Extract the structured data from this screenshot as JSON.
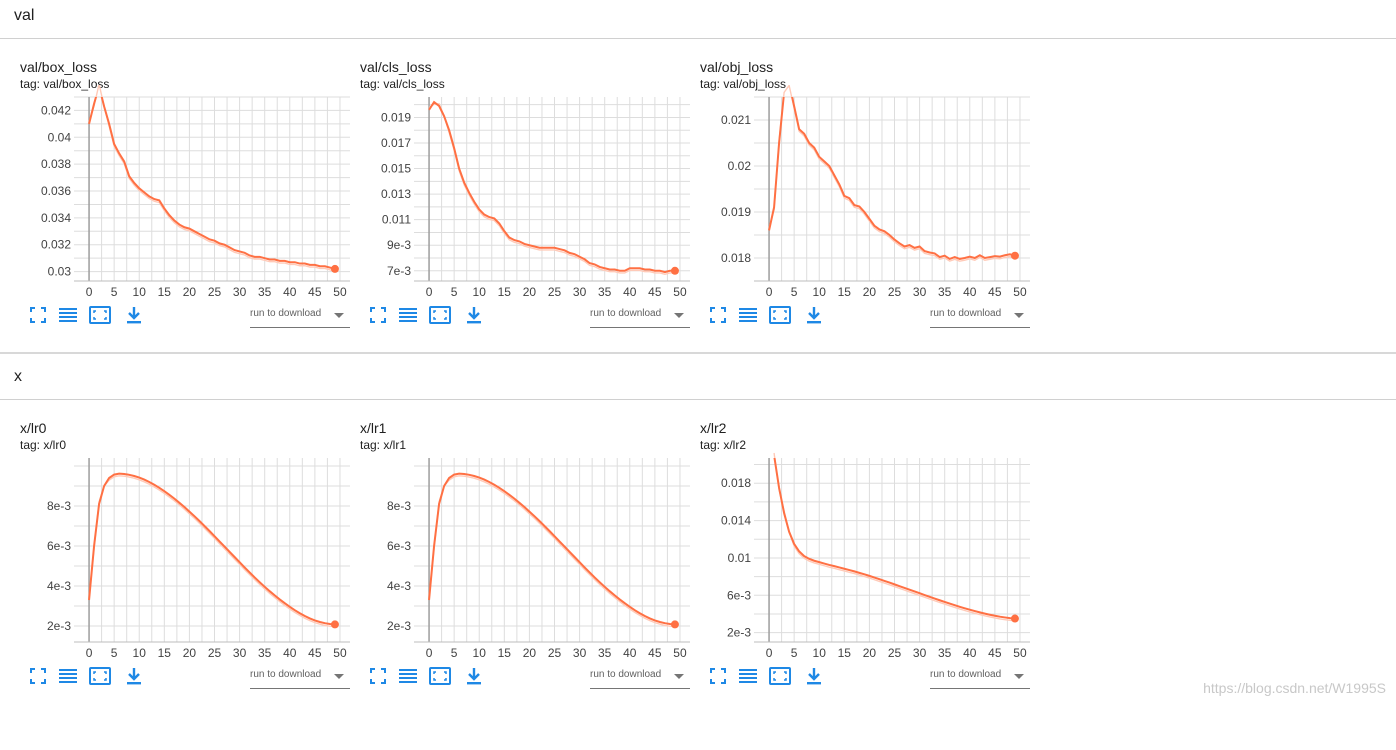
{
  "sections": [
    {
      "name": "val"
    },
    {
      "name": "x"
    }
  ],
  "toolbar": {
    "run_select_label": "run to download",
    "icons": [
      "fullscreen-icon",
      "data-table-icon",
      "fit-domain-icon",
      "download-icon"
    ]
  },
  "watermark": "https://blog.csdn.net/W1995S",
  "colors": {
    "series": "#ff7043",
    "series_raw": "#ffcab8",
    "grid": "#dddddd",
    "axis": "#9e9e9e"
  },
  "chart_data": [
    {
      "type": "line",
      "title": "val/box_loss",
      "tag": "tag: val/box_loss",
      "xlim": [
        -3,
        52
      ],
      "ylim": [
        0.0293,
        0.043
      ],
      "xticks": [
        "0",
        "5",
        "10",
        "15",
        "20",
        "25",
        "30",
        "35",
        "40",
        "45",
        "50"
      ],
      "yticks": [
        "0.03",
        "0.032",
        "0.034",
        "0.036",
        "0.038",
        "0.04",
        "0.042"
      ],
      "series": [
        {
          "x": [
            0,
            1,
            2,
            3,
            4,
            5,
            6,
            7,
            8,
            9,
            10,
            11,
            12,
            13,
            14,
            15,
            16,
            17,
            18,
            19,
            20,
            21,
            22,
            23,
            24,
            25,
            26,
            27,
            28,
            29,
            30,
            31,
            32,
            33,
            34,
            35,
            36,
            37,
            38,
            39,
            40,
            41,
            42,
            43,
            44,
            45,
            46,
            47,
            48,
            49
          ],
          "y": [
            0.041,
            0.0425,
            0.0438,
            0.0423,
            0.041,
            0.0395,
            0.0388,
            0.0382,
            0.0371,
            0.0366,
            0.0362,
            0.0359,
            0.0356,
            0.0354,
            0.0353,
            0.0347,
            0.0342,
            0.0338,
            0.0335,
            0.0333,
            0.0332,
            0.033,
            0.0328,
            0.0326,
            0.0324,
            0.0323,
            0.0321,
            0.032,
            0.0318,
            0.0316,
            0.0315,
            0.0314,
            0.0312,
            0.0311,
            0.0311,
            0.031,
            0.0309,
            0.0309,
            0.0308,
            0.0308,
            0.0307,
            0.0307,
            0.0306,
            0.0306,
            0.0305,
            0.0305,
            0.0304,
            0.0304,
            0.0303,
            0.0302
          ]
        }
      ]
    },
    {
      "type": "line",
      "title": "val/cls_loss",
      "tag": "tag: val/cls_loss",
      "xlim": [
        -3,
        52
      ],
      "ylim": [
        0.0062,
        0.0206
      ],
      "xticks": [
        "0",
        "5",
        "10",
        "15",
        "20",
        "25",
        "30",
        "35",
        "40",
        "45",
        "50"
      ],
      "yticks": [
        "7e-3",
        "9e-3",
        "0.011",
        "0.013",
        "0.015",
        "0.017",
        "0.019"
      ],
      "series": [
        {
          "x": [
            0,
            1,
            2,
            3,
            4,
            5,
            6,
            7,
            8,
            9,
            10,
            11,
            12,
            13,
            14,
            15,
            16,
            17,
            18,
            19,
            20,
            21,
            22,
            23,
            24,
            25,
            26,
            27,
            28,
            29,
            30,
            31,
            32,
            33,
            34,
            35,
            36,
            37,
            38,
            39,
            40,
            41,
            42,
            43,
            44,
            45,
            46,
            47,
            48,
            49
          ],
          "y": [
            0.0196,
            0.0202,
            0.0199,
            0.0191,
            0.018,
            0.0166,
            0.015,
            0.0139,
            0.0131,
            0.0124,
            0.0118,
            0.0114,
            0.0112,
            0.0111,
            0.0107,
            0.0101,
            0.0096,
            0.0094,
            0.0093,
            0.0091,
            0.009,
            0.0089,
            0.0088,
            0.0088,
            0.0088,
            0.0088,
            0.0087,
            0.0086,
            0.0084,
            0.0083,
            0.0081,
            0.0079,
            0.0076,
            0.0075,
            0.0073,
            0.0072,
            0.0071,
            0.0071,
            0.007,
            0.007,
            0.0072,
            0.0072,
            0.0072,
            0.0071,
            0.0071,
            0.007,
            0.007,
            0.0069,
            0.007,
            0.007
          ]
        }
      ]
    },
    {
      "type": "line",
      "title": "val/obj_loss",
      "tag": "tag: val/obj_loss",
      "xlim": [
        -3,
        52
      ],
      "ylim": [
        0.0175,
        0.0215
      ],
      "xticks": [
        "0",
        "5",
        "10",
        "15",
        "20",
        "25",
        "30",
        "35",
        "40",
        "45",
        "50"
      ],
      "yticks": [
        "0.018",
        "0.019",
        "0.02",
        "0.021"
      ],
      "series": [
        {
          "x": [
            0,
            1,
            2,
            3,
            4,
            5,
            6,
            7,
            8,
            9,
            10,
            11,
            12,
            13,
            14,
            15,
            16,
            17,
            18,
            19,
            20,
            21,
            22,
            23,
            24,
            25,
            26,
            27,
            28,
            29,
            30,
            31,
            32,
            33,
            34,
            35,
            36,
            37,
            38,
            39,
            40,
            41,
            42,
            43,
            44,
            45,
            46,
            47,
            48,
            49
          ],
          "y": [
            0.0186,
            0.0191,
            0.0205,
            0.0216,
            0.0218,
            0.0213,
            0.0208,
            0.0207,
            0.0205,
            0.0204,
            0.0202,
            0.0201,
            0.02,
            0.0198,
            0.0196,
            0.01935,
            0.0193,
            0.01915,
            0.01912,
            0.019,
            0.01885,
            0.0187,
            0.01862,
            0.01858,
            0.0185,
            0.0184,
            0.01832,
            0.01825,
            0.01828,
            0.01822,
            0.01825,
            0.01815,
            0.01812,
            0.0181,
            0.01802,
            0.01805,
            0.01798,
            0.01802,
            0.01798,
            0.018,
            0.01803,
            0.018,
            0.01806,
            0.018,
            0.01802,
            0.01804,
            0.01803,
            0.01806,
            0.01808,
            0.01805
          ]
        }
      ]
    },
    {
      "type": "line",
      "title": "x/lr0",
      "tag": "tag: x/lr0",
      "xlim": [
        -3,
        52
      ],
      "ylim": [
        0.0012,
        0.0104
      ],
      "xticks": [
        "0",
        "5",
        "10",
        "15",
        "20",
        "25",
        "30",
        "35",
        "40",
        "45",
        "50"
      ],
      "yticks": [
        "2e-3",
        "4e-3",
        "6e-3",
        "8e-3"
      ],
      "series": [
        {
          "x": [
            0,
            1,
            2,
            3,
            4,
            5,
            6,
            7,
            8,
            9,
            10,
            11,
            12,
            13,
            14,
            15,
            16,
            17,
            18,
            19,
            20,
            21,
            22,
            23,
            24,
            25,
            26,
            27,
            28,
            29,
            30,
            31,
            32,
            33,
            34,
            35,
            36,
            37,
            38,
            39,
            40,
            41,
            42,
            43,
            44,
            45,
            46,
            47,
            48,
            49
          ],
          "y": [
            0.0033,
            0.006,
            0.0081,
            0.009,
            0.0094,
            0.00957,
            0.00962,
            0.0096,
            0.00956,
            0.0095,
            0.00942,
            0.00932,
            0.0092,
            0.00906,
            0.00891,
            0.00874,
            0.00856,
            0.00837,
            0.00816,
            0.00795,
            0.00772,
            0.00749,
            0.00725,
            0.007,
            0.00675,
            0.00649,
            0.00623,
            0.00597,
            0.00571,
            0.00545,
            0.00519,
            0.00493,
            0.00468,
            0.00443,
            0.00419,
            0.00396,
            0.00374,
            0.00353,
            0.00333,
            0.00314,
            0.00296,
            0.00279,
            0.00264,
            0.0025,
            0.00238,
            0.00228,
            0.0022,
            0.00214,
            0.0021,
            0.00208
          ]
        }
      ]
    },
    {
      "type": "line",
      "title": "x/lr1",
      "tag": "tag: x/lr1",
      "xlim": [
        -3,
        52
      ],
      "ylim": [
        0.0012,
        0.0104
      ],
      "xticks": [
        "0",
        "5",
        "10",
        "15",
        "20",
        "25",
        "30",
        "35",
        "40",
        "45",
        "50"
      ],
      "yticks": [
        "2e-3",
        "4e-3",
        "6e-3",
        "8e-3"
      ],
      "series": [
        {
          "x": [
            0,
            1,
            2,
            3,
            4,
            5,
            6,
            7,
            8,
            9,
            10,
            11,
            12,
            13,
            14,
            15,
            16,
            17,
            18,
            19,
            20,
            21,
            22,
            23,
            24,
            25,
            26,
            27,
            28,
            29,
            30,
            31,
            32,
            33,
            34,
            35,
            36,
            37,
            38,
            39,
            40,
            41,
            42,
            43,
            44,
            45,
            46,
            47,
            48,
            49
          ],
          "y": [
            0.0033,
            0.006,
            0.0081,
            0.009,
            0.0094,
            0.00957,
            0.00962,
            0.0096,
            0.00956,
            0.0095,
            0.00942,
            0.00932,
            0.0092,
            0.00906,
            0.00891,
            0.00874,
            0.00856,
            0.00837,
            0.00816,
            0.00795,
            0.00772,
            0.00749,
            0.00725,
            0.007,
            0.00675,
            0.00649,
            0.00623,
            0.00597,
            0.00571,
            0.00545,
            0.00519,
            0.00493,
            0.00468,
            0.00443,
            0.00419,
            0.00396,
            0.00374,
            0.00353,
            0.00333,
            0.00314,
            0.00296,
            0.00279,
            0.00264,
            0.0025,
            0.00238,
            0.00228,
            0.0022,
            0.00214,
            0.0021,
            0.00208
          ]
        }
      ]
    },
    {
      "type": "line",
      "title": "x/lr2",
      "tag": "tag: x/lr2",
      "xlim": [
        -3,
        52
      ],
      "ylim": [
        0.001,
        0.0207
      ],
      "xticks": [
        "0",
        "5",
        "10",
        "15",
        "20",
        "25",
        "30",
        "35",
        "40",
        "45",
        "50"
      ],
      "yticks": [
        "2e-3",
        "6e-3",
        "0.01",
        "0.014",
        "0.018"
      ],
      "series": [
        {
          "x": [
            1,
            2,
            3,
            4,
            5,
            6,
            7,
            8,
            9,
            10,
            11,
            12,
            13,
            14,
            15,
            16,
            17,
            18,
            19,
            20,
            21,
            22,
            23,
            24,
            25,
            26,
            27,
            28,
            29,
            30,
            31,
            32,
            33,
            34,
            35,
            36,
            37,
            38,
            39,
            40,
            41,
            42,
            43,
            44,
            45,
            46,
            47,
            48,
            49
          ],
          "y": [
            0.021,
            0.0175,
            0.0148,
            0.0128,
            0.0115,
            0.0107,
            0.0102,
            0.0099,
            0.0097,
            0.00955,
            0.0094,
            0.00925,
            0.00912,
            0.00898,
            0.00884,
            0.0087,
            0.00856,
            0.0084,
            0.00825,
            0.00808,
            0.0079,
            0.00772,
            0.00754,
            0.00736,
            0.00717,
            0.00698,
            0.00679,
            0.0066,
            0.00641,
            0.00622,
            0.00603,
            0.00584,
            0.00565,
            0.00547,
            0.00529,
            0.00511,
            0.00494,
            0.00477,
            0.00461,
            0.00446,
            0.00431,
            0.00417,
            0.00404,
            0.00392,
            0.00381,
            0.00371,
            0.00363,
            0.00356,
            0.00351
          ]
        }
      ]
    }
  ]
}
